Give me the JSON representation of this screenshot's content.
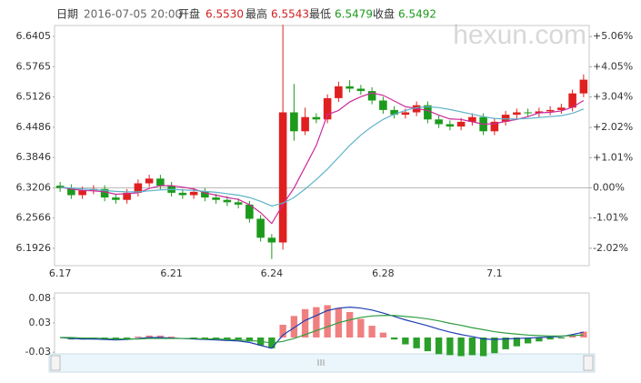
{
  "header": {
    "date_label": "日期",
    "datetime": "2016-07-05 20:00",
    "open_label": "开盘",
    "open": "6.5530",
    "high_label": "最高",
    "high": "6.5543",
    "low_label": "最低",
    "low": "6.5479",
    "close_label": "收盘",
    "close": "6.5492",
    "watermark": "hexun.com"
  },
  "chart_data": [
    {
      "type": "candlestick",
      "categories": [
        "6.17",
        null,
        null,
        null,
        null,
        null,
        null,
        null,
        null,
        null,
        "6.21",
        null,
        null,
        null,
        null,
        null,
        null,
        null,
        null,
        "6.24",
        null,
        null,
        null,
        null,
        null,
        null,
        null,
        null,
        null,
        "6.28",
        null,
        null,
        null,
        null,
        null,
        null,
        null,
        null,
        null,
        "7.1",
        null,
        null,
        null,
        null,
        null,
        null,
        null,
        null
      ],
      "opens": [
        6.325,
        6.32,
        6.305,
        6.315,
        6.318,
        6.3,
        6.295,
        6.31,
        6.33,
        6.34,
        6.325,
        6.31,
        6.305,
        6.312,
        6.3,
        6.295,
        6.29,
        6.285,
        6.255,
        6.215,
        6.205,
        6.48,
        6.44,
        6.47,
        6.465,
        6.51,
        6.535,
        6.53,
        6.525,
        6.505,
        6.485,
        6.475,
        6.48,
        6.495,
        6.465,
        6.455,
        6.45,
        6.46,
        6.47,
        6.44,
        6.46,
        6.475,
        6.48,
        6.478,
        6.482,
        6.485,
        6.49,
        6.52
      ],
      "highs": [
        6.333,
        6.328,
        6.323,
        6.326,
        6.326,
        6.308,
        6.318,
        6.338,
        6.348,
        6.348,
        6.333,
        6.318,
        6.32,
        6.32,
        6.308,
        6.303,
        6.298,
        6.293,
        6.263,
        6.223,
        6.665,
        6.54,
        6.49,
        6.478,
        6.518,
        6.545,
        6.548,
        6.538,
        6.533,
        6.513,
        6.493,
        6.488,
        6.503,
        6.503,
        6.473,
        6.463,
        6.468,
        6.478,
        6.478,
        6.468,
        6.483,
        6.488,
        6.488,
        6.49,
        6.493,
        6.498,
        6.528,
        6.56
      ],
      "lows": [
        6.312,
        6.297,
        6.297,
        6.307,
        6.292,
        6.287,
        6.287,
        6.302,
        6.322,
        6.317,
        6.302,
        6.297,
        6.297,
        6.292,
        6.287,
        6.282,
        6.277,
        6.247,
        6.207,
        6.17,
        6.19,
        6.42,
        6.432,
        6.457,
        6.457,
        6.502,
        6.522,
        6.517,
        6.497,
        6.477,
        6.467,
        6.467,
        6.472,
        6.457,
        6.447,
        6.442,
        6.442,
        6.452,
        6.432,
        6.432,
        6.452,
        6.467,
        6.47,
        6.47,
        6.474,
        6.477,
        6.482,
        6.512
      ],
      "closes": [
        6.32,
        6.305,
        6.315,
        6.318,
        6.3,
        6.295,
        6.31,
        6.33,
        6.34,
        6.325,
        6.31,
        6.305,
        6.312,
        6.3,
        6.295,
        6.29,
        6.285,
        6.255,
        6.215,
        6.205,
        6.48,
        6.44,
        6.47,
        6.465,
        6.51,
        6.535,
        6.53,
        6.525,
        6.505,
        6.485,
        6.475,
        6.48,
        6.495,
        6.465,
        6.455,
        6.45,
        6.46,
        6.47,
        6.44,
        6.46,
        6.475,
        6.48,
        6.478,
        6.482,
        6.485,
        6.49,
        6.52,
        6.549
      ],
      "up_color": "#e02020",
      "down_color": "#1c9a1c",
      "series": [
        {
          "color": "#cc2a99",
          "values": [
            6.322,
            6.318,
            6.315,
            6.314,
            6.312,
            6.307,
            6.308,
            6.31,
            6.319,
            6.325,
            6.325,
            6.322,
            6.318,
            6.31,
            6.305,
            6.3,
            6.296,
            6.285,
            6.268,
            6.245,
            6.285,
            6.32,
            6.365,
            6.41,
            6.475,
            6.484,
            6.502,
            6.513,
            6.521,
            6.516,
            6.504,
            6.492,
            6.488,
            6.484,
            6.474,
            6.466,
            6.465,
            6.46,
            6.455,
            6.456,
            6.461,
            6.465,
            6.471,
            6.479,
            6.48,
            6.483,
            6.491,
            6.505
          ]
        },
        {
          "color": "#5fb3c8",
          "values": [
            6.322,
            6.32,
            6.318,
            6.317,
            6.315,
            6.313,
            6.312,
            6.312,
            6.314,
            6.316,
            6.317,
            6.316,
            6.315,
            6.313,
            6.311,
            6.308,
            6.305,
            6.3,
            6.292,
            6.282,
            6.288,
            6.3,
            6.318,
            6.338,
            6.36,
            6.385,
            6.41,
            6.432,
            6.45,
            6.465,
            6.476,
            6.484,
            6.49,
            6.492,
            6.49,
            6.486,
            6.481,
            6.476,
            6.471,
            6.467,
            6.466,
            6.466,
            6.467,
            6.469,
            6.471,
            6.473,
            6.478,
            6.487
          ]
        }
      ],
      "ylim": [
        6.156,
        6.6636
      ],
      "yticks": [
        6.6405,
        6.5765,
        6.5126,
        6.4486,
        6.3846,
        6.3206,
        6.2566,
        6.1926
      ],
      "y2lim": [
        -2.6,
        5.43
      ],
      "y2ticks": [
        {
          "value": 5.06,
          "label": "+5.06%"
        },
        {
          "value": 4.05,
          "label": "+4.05%"
        },
        {
          "value": 3.04,
          "label": "+3.04%"
        },
        {
          "value": 2.02,
          "label": "+2.02%"
        },
        {
          "value": 1.01,
          "label": "+1.01%"
        },
        {
          "value": 0,
          "label": "0.00%"
        },
        {
          "value": -1.01,
          "label": "-1.01%"
        },
        {
          "value": -2.02,
          "label": "-2.02%"
        }
      ]
    },
    {
      "type": "macd",
      "histogram": [
        0,
        -0.004,
        -0.004,
        -0.004,
        -0.004,
        -0.004,
        -0.002,
        0.002,
        0.004,
        0.004,
        0.002,
        0,
        -0.002,
        -0.002,
        -0.004,
        -0.004,
        -0.004,
        -0.008,
        -0.016,
        -0.022,
        0.026,
        0.044,
        0.058,
        0.062,
        0.066,
        0.06,
        0.052,
        0.038,
        0.024,
        0.01,
        -0.004,
        -0.014,
        -0.022,
        -0.028,
        -0.034,
        -0.036,
        -0.038,
        -0.036,
        -0.038,
        -0.032,
        -0.024,
        -0.018,
        -0.012,
        -0.008,
        -0.004,
        -0.002,
        0.004,
        0.012
      ],
      "up_color": "#f08080",
      "down_color": "#2aa02a",
      "series": [
        {
          "color": "#1f3fb0",
          "values": [
            0,
            -0.002,
            -0.003,
            -0.003,
            -0.004,
            -0.005,
            -0.004,
            -0.002,
            0,
            0,
            -0.001,
            -0.002,
            -0.003,
            -0.004,
            -0.005,
            -0.006,
            -0.007,
            -0.01,
            -0.016,
            -0.022,
            0.005,
            0.02,
            0.035,
            0.045,
            0.055,
            0.06,
            0.062,
            0.06,
            0.056,
            0.05,
            0.043,
            0.036,
            0.03,
            0.024,
            0.017,
            0.011,
            0.006,
            0.002,
            -0.003,
            -0.004,
            -0.003,
            -0.002,
            -0.001,
            0,
            0.001,
            0.002,
            0.006,
            0.011
          ]
        },
        {
          "color": "#2e9e3e",
          "values": [
            0,
            0,
            -0.001,
            -0.001,
            -0.002,
            -0.003,
            -0.003,
            -0.003,
            -0.002,
            -0.002,
            -0.002,
            -0.002,
            -0.002,
            -0.003,
            -0.003,
            -0.004,
            -0.005,
            -0.006,
            -0.008,
            -0.011,
            -0.008,
            -0.002,
            0.006,
            0.014,
            0.022,
            0.03,
            0.036,
            0.041,
            0.044,
            0.045,
            0.045,
            0.043,
            0.041,
            0.038,
            0.034,
            0.029,
            0.025,
            0.02,
            0.016,
            0.012,
            0.009,
            0.007,
            0.005,
            0.004,
            0.003,
            0.003,
            0.004,
            0.005
          ]
        }
      ],
      "ylim": [
        -0.039,
        0.091
      ],
      "yticks": [
        0.08,
        0.03,
        -0.03
      ]
    }
  ]
}
